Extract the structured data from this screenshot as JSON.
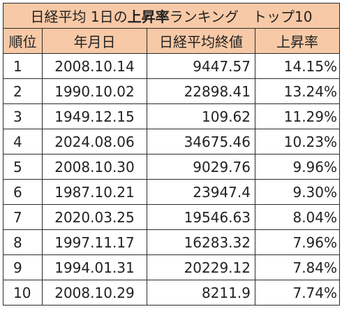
{
  "title": {
    "prefix": "日経平均 1日の",
    "highlight": "上昇率",
    "suffix": "ランキング　トップ10"
  },
  "columns": [
    "順位",
    "年月日",
    "日経平均終値",
    "上昇率"
  ],
  "rows": [
    {
      "rank": "1",
      "date": "2008.10.14",
      "close": "9447.57",
      "rate": "14.15%"
    },
    {
      "rank": "2",
      "date": "1990.10.02",
      "close": "22898.41",
      "rate": "13.24%"
    },
    {
      "rank": "3",
      "date": "1949.12.15",
      "close": "109.62",
      "rate": "11.29%"
    },
    {
      "rank": "4",
      "date": "2024.08.06",
      "close": "34675.46",
      "rate": "10.23%"
    },
    {
      "rank": "5",
      "date": "2008.10.30",
      "close": "9029.76",
      "rate": "9.96%"
    },
    {
      "rank": "6",
      "date": "1987.10.21",
      "close": "23947.4",
      "rate": "9.30%"
    },
    {
      "rank": "7",
      "date": "2020.03.25",
      "close": "19546.63",
      "rate": "8.04%"
    },
    {
      "rank": "8",
      "date": "1997.11.17",
      "close": "16283.32",
      "rate": "7.96%"
    },
    {
      "rank": "9",
      "date": "1994.01.31",
      "close": "20229.12",
      "rate": "7.84%"
    },
    {
      "rank": "10",
      "date": "2008.10.29",
      "close": "8211.9",
      "rate": "7.74%"
    }
  ],
  "colors": {
    "header_background": "#f8c9a6",
    "border": "#2b2b2b",
    "text": "#222222"
  }
}
